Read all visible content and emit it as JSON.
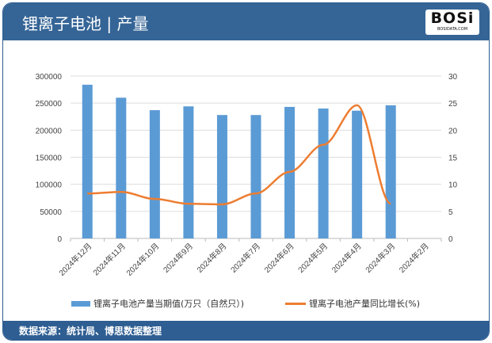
{
  "header": {
    "title": "锂离子电池 | 产量",
    "logo_text": "BOSi",
    "logo_sub": "BOSIDATA.COM"
  },
  "footer": {
    "source": "数据来源：统计局、博思数据整理"
  },
  "colors": {
    "bar": "#5b9bd5",
    "line": "#ed7d31",
    "header": "#356596"
  },
  "chart_data": {
    "type": "bar+line",
    "categories": [
      "2024年12月",
      "2024年11月",
      "2024年10月",
      "2024年9月",
      "2024年8月",
      "2024年7月",
      "2024年6月",
      "2024年5月",
      "2024年4月",
      "2024年3月",
      "2024年2月"
    ],
    "series": [
      {
        "name": "锂离子电池产量当期值(万只（自然只）)",
        "type": "bar",
        "axis": "left",
        "values": [
          284000,
          260000,
          237000,
          244000,
          228000,
          228000,
          243000,
          240000,
          236000,
          246000,
          null
        ]
      },
      {
        "name": "锂离子电池产量同比增长(%)",
        "type": "line",
        "axis": "right",
        "values": [
          8.3,
          8.6,
          7.3,
          6.4,
          6.3,
          8.3,
          12.3,
          17.3,
          24.6,
          6.4,
          null
        ]
      }
    ],
    "left_axis": {
      "ylim": [
        0,
        300000
      ],
      "ticks": [
        0,
        50000,
        100000,
        150000,
        200000,
        250000,
        300000
      ]
    },
    "right_axis": {
      "ylim": [
        0,
        30
      ],
      "ticks": [
        0,
        5,
        10,
        15,
        20,
        25,
        30
      ]
    },
    "grid": true,
    "legend_position": "bottom"
  }
}
